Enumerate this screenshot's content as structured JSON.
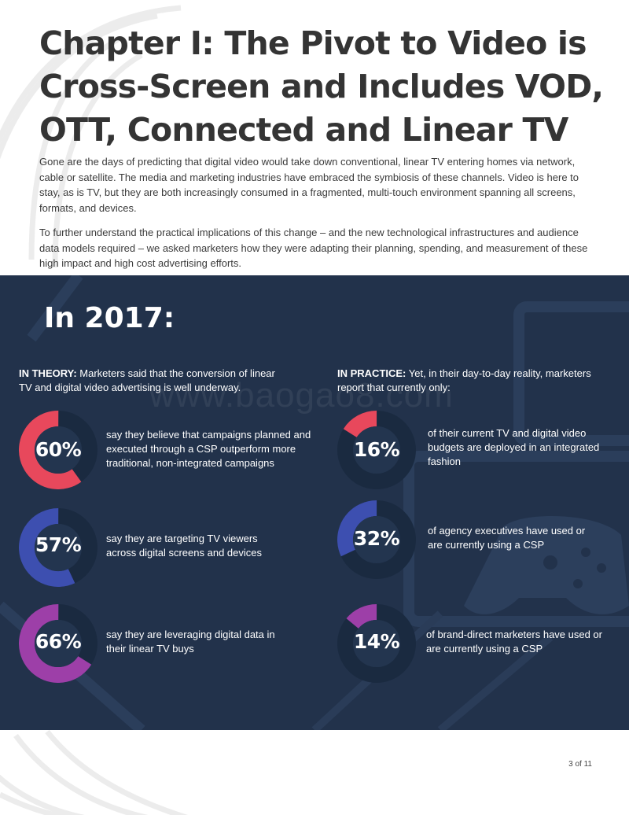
{
  "title": "Chapter I: The Pivot to Video is Cross-Screen and Includes VOD, OTT, Connected and Linear TV",
  "intro": [
    "Gone are the days of predicting that digital video would take down conventional, linear TV entering homes via network, cable or satellite. The media and marketing industries have embraced the symbiosis of these channels. Video is here to stay, as is TV, but they are both increasingly consumed in a fragmented, multi-touch environment spanning all screens, formats, and devices.",
    "To further understand the practical implications of this change – and the new technological infrastructures and audience data models required – we asked marketers how they were adapting their planning, spending, and measurement of these high impact and high cost advertising efforts."
  ],
  "panel": {
    "year_heading": "In 2017:",
    "watermark": "www.baogao8.com",
    "theory": {
      "lead": "IN THEORY:",
      "text": " Marketers said that the conversion of linear TV and digital video advertising is well underway.",
      "stats": [
        {
          "label": "60%",
          "value": 60,
          "color": "#e8485c",
          "text": "say they believe that campaigns planned and executed through a CSP outperform more traditional, non-integrated campaigns"
        },
        {
          "label": "57%",
          "value": 57,
          "color": "#3d4fb0",
          "text": "say they are targeting TV viewers across digital screens and devices"
        },
        {
          "label": "66%",
          "value": 66,
          "color": "#9d3fa8",
          "text": "say they are leveraging digital data in their linear TV buys"
        }
      ]
    },
    "practice": {
      "lead": "IN PRACTICE:",
      "text": " Yet, in their day-to-day reality, marketers report that currently only:",
      "stats": [
        {
          "label": "16%",
          "value": 16,
          "color": "#e8485c",
          "text": "of their current TV and digital video budgets are deployed in an integrated fashion"
        },
        {
          "label": "32%",
          "value": 32,
          "color": "#3d4fb0",
          "text": "of agency executives have used or are currently using a CSP"
        },
        {
          "label": "14%",
          "value": 14,
          "color": "#9d3fa8",
          "text": "of brand-direct marketers have used or are currently using a CSP"
        }
      ]
    }
  },
  "footer": {
    "page": "3 of 11"
  }
}
